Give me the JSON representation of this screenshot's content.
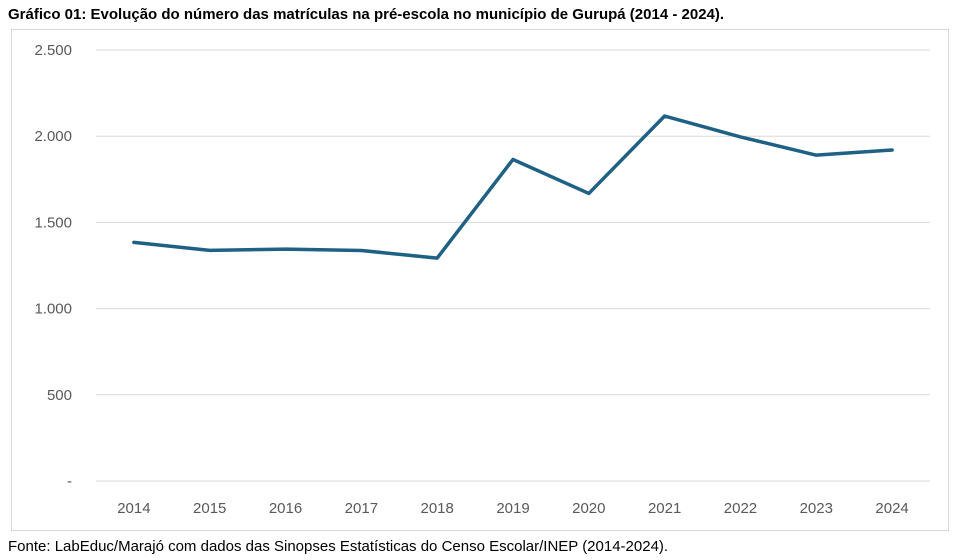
{
  "title": "Gráfico 01: Evolução do número das matrículas na pré-escola no município de Gurupá (2014 - 2024).",
  "source": "Fonte: LabEduc/Marajó com dados das Sinopses Estatísticas do Censo Escolar/INEP (2014-2024).",
  "chart_data": {
    "type": "line",
    "title": "Gráfico 01: Evolução do número das matrículas na pré-escola no município de Gurupá (2014 - 2024).",
    "xlabel": "",
    "ylabel": "",
    "categories": [
      "2014",
      "2015",
      "2016",
      "2017",
      "2018",
      "2019",
      "2020",
      "2021",
      "2022",
      "2023",
      "2024"
    ],
    "series": [
      {
        "values": [
          1384,
          1338,
          1345,
          1337,
          1293,
          1865,
          1668,
          2117,
          1996,
          1890,
          1920
        ],
        "color": "#1f6184"
      }
    ],
    "ylim": [
      0,
      2500
    ],
    "yticks": [
      0,
      500,
      1000,
      1500,
      2000,
      2500
    ],
    "ytick_labels": [
      "-",
      "500",
      "1.000",
      "1.500",
      "2.000",
      "2.500"
    ],
    "grid": true,
    "legend": "none"
  }
}
